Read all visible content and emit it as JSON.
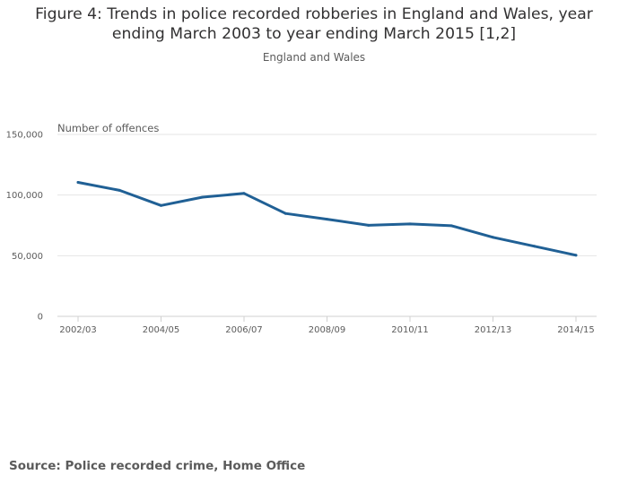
{
  "chart_data": {
    "type": "line",
    "title": "Figure 4: Trends in police recorded robberies in England and Wales, year ending March 2003 to year ending March 2015 [1,2]",
    "subtitle": "England and Wales",
    "ylabel": "Number of offences",
    "xlabel": "",
    "categories": [
      "2002/03",
      "2003/04",
      "2004/05",
      "2005/06",
      "2006/07",
      "2007/08",
      "2008/09",
      "2009/10",
      "2010/11",
      "2011/12",
      "2012/13",
      "2013/14",
      "2014/15"
    ],
    "x_tick_labels": [
      "2002/03",
      "2004/05",
      "2006/07",
      "2008/09",
      "2010/11",
      "2012/13",
      "2014/15"
    ],
    "y_ticks": [
      0,
      50000,
      100000,
      150000
    ],
    "y_tick_labels": [
      "0",
      "50,000",
      "100,000",
      "150,000"
    ],
    "ylim": [
      0,
      150000
    ],
    "grid": true,
    "series": [
      {
        "name": "Robberies",
        "color": "#206095",
        "values": [
          110500,
          103900,
          91400,
          98300,
          101400,
          84800,
          80100,
          75100,
          76200,
          74700,
          65200,
          57800,
          50400
        ]
      }
    ],
    "source": "Source: Police recorded crime, Home Office"
  }
}
